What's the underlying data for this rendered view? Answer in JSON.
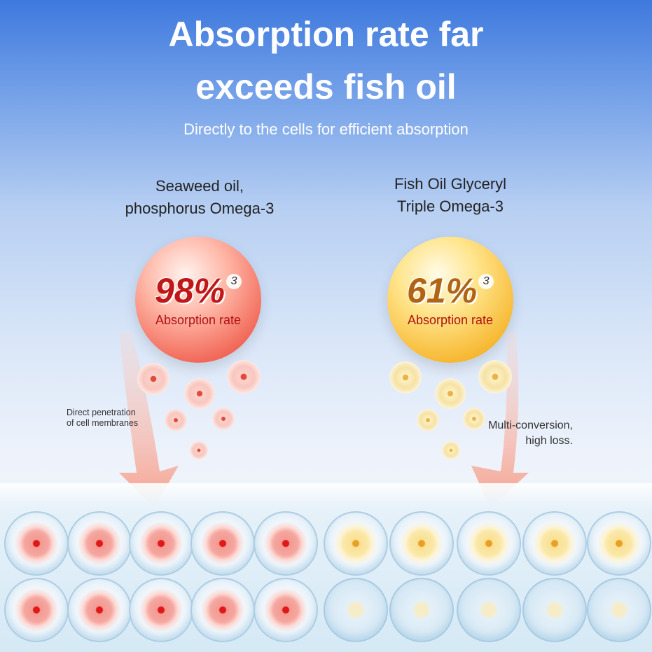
{
  "header": {
    "title_line1": "Absorption rate far",
    "title_line2": "exceeds fish oil",
    "subtitle": "Directly to the cells for efficient absorption"
  },
  "left": {
    "label_line1": "Seaweed oil,",
    "label_line2": "phosphorus Omega-3",
    "percent": "98%",
    "sup": "3",
    "rate_label": "Absorption rate",
    "note_line1": "Direct penetration",
    "note_line2": "of cell membranes",
    "accent": "#c01818"
  },
  "right": {
    "label_line1": "Fish Oil Glyceryl",
    "label_line2": "Triple Omega-3",
    "percent": "61%",
    "sup": "3",
    "rate_label": "Absorption rate",
    "note_line1": "Multi-conversion,",
    "note_line2": "high loss.",
    "accent": "#b06414"
  }
}
